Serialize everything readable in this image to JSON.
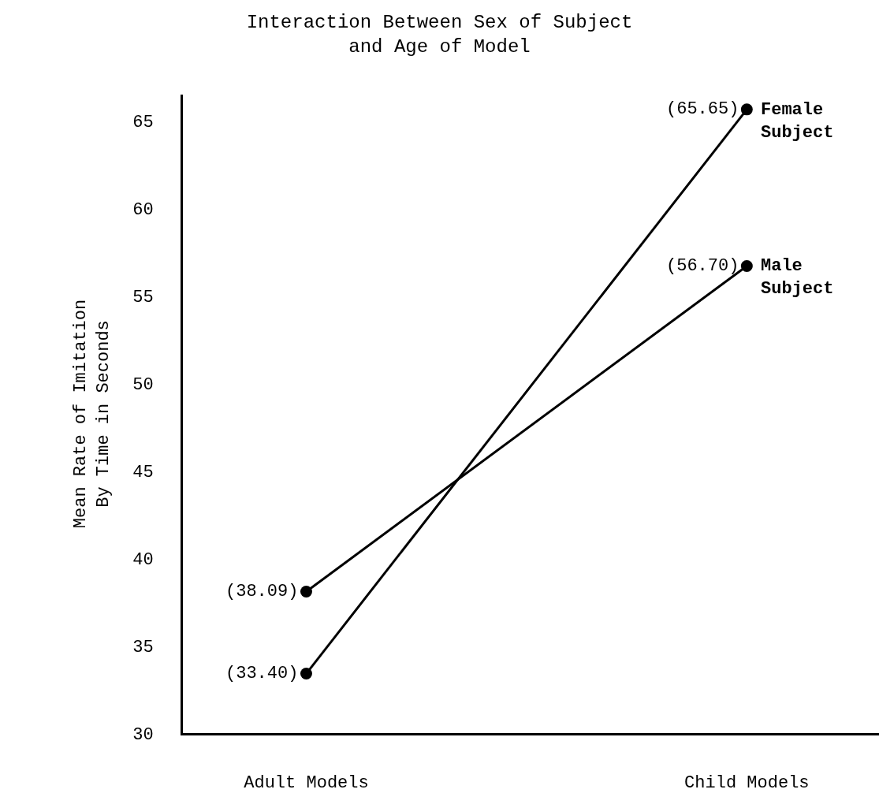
{
  "chart_data": {
    "type": "line",
    "title": "Interaction Between Sex of Subject and Age of Model",
    "ylabel": "Mean Rate of Imitation By Time in Seconds",
    "categories": [
      "Adult Models",
      "Child Models"
    ],
    "series": [
      {
        "name": "Female Subject",
        "color": "#000000",
        "values": [
          33.4,
          65.65
        ],
        "value_labels": [
          "(33.40)",
          "(65.65)"
        ]
      },
      {
        "name": "Male Subject",
        "color": "#000000",
        "values": [
          38.09,
          56.7
        ],
        "value_labels": [
          "(38.09)",
          "(56.70)"
        ]
      }
    ],
    "ylim": [
      30,
      66.5
    ],
    "yticks": [
      30,
      35,
      40,
      45,
      50,
      55,
      60,
      65
    ],
    "legend": false,
    "marker": "circle",
    "line_style": "solid"
  }
}
